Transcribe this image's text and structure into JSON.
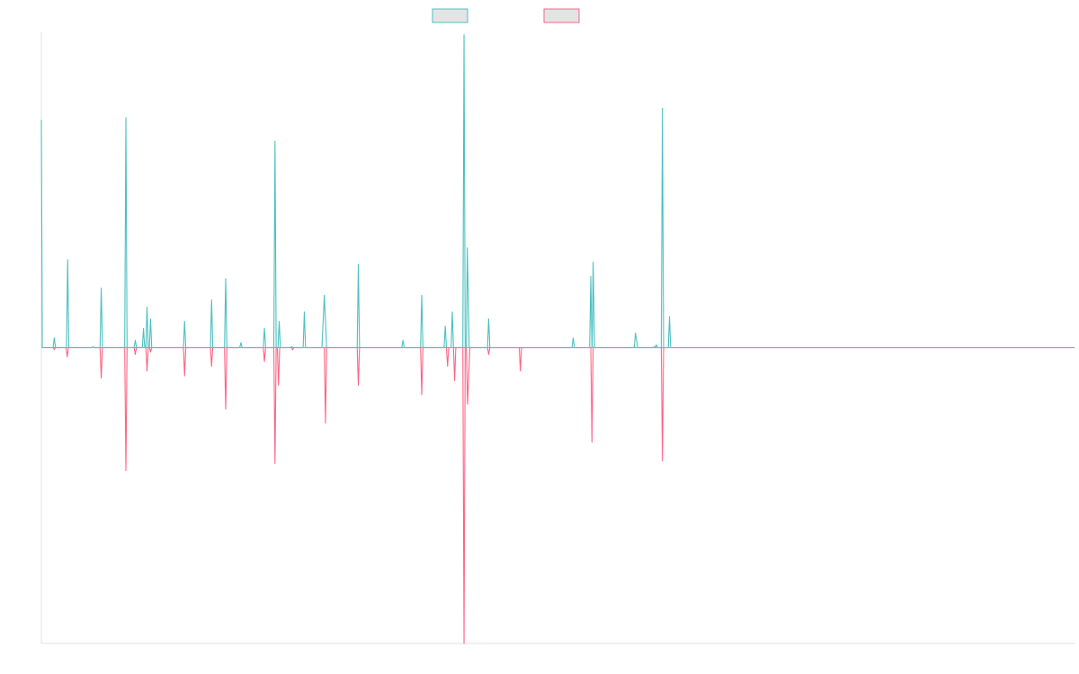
{
  "chart_data": {
    "type": "line",
    "title": "",
    "xlabel": "",
    "ylabel": "",
    "grid": false,
    "legend_placement": "top-center",
    "x_range": [
      0,
      440
    ],
    "ylim": [
      -1.25,
      1.33
    ],
    "series": [
      {
        "color": "#4bc0c0",
        "fill": "#e4e4e4",
        "points": [
          [
            0,
            0.96
          ],
          [
            0.4,
            0
          ],
          [
            5,
            0
          ],
          [
            5.5,
            0.04
          ],
          [
            6,
            0
          ],
          [
            10.7,
            0
          ],
          [
            11.2,
            0.37
          ],
          [
            11.7,
            0
          ],
          [
            21.5,
            0
          ],
          [
            22,
            0.003
          ],
          [
            22.5,
            0
          ],
          [
            25,
            0
          ],
          [
            25.5,
            0.25
          ],
          [
            26,
            0
          ],
          [
            35.5,
            0
          ],
          [
            36,
            0.97
          ],
          [
            36.5,
            0
          ],
          [
            39.5,
            0
          ],
          [
            40,
            0.03
          ],
          [
            40.5,
            0
          ],
          [
            43,
            0
          ],
          [
            43.5,
            0.08
          ],
          [
            44,
            0
          ],
          [
            44.5,
            0
          ],
          [
            45,
            0.17
          ],
          [
            45.5,
            0
          ],
          [
            46,
            0
          ],
          [
            46.5,
            0.12
          ],
          [
            47,
            0
          ],
          [
            60.5,
            0
          ],
          [
            61,
            0.11
          ],
          [
            61.5,
            0
          ],
          [
            72,
            0
          ],
          [
            72.5,
            0.2
          ],
          [
            73,
            0
          ],
          [
            78,
            0
          ],
          [
            78.5,
            0.29
          ],
          [
            79,
            0
          ],
          [
            84.5,
            0
          ],
          [
            85,
            0.02
          ],
          [
            85.5,
            0
          ],
          [
            94.5,
            0
          ],
          [
            95,
            0.08
          ],
          [
            95.5,
            0
          ],
          [
            99,
            0
          ],
          [
            99.5,
            0.87
          ],
          [
            100,
            0
          ],
          [
            100.8,
            0
          ],
          [
            101.3,
            0.11
          ],
          [
            101.8,
            0
          ],
          [
            106.2,
            0
          ],
          [
            106.7,
            0.003
          ],
          [
            107.2,
            0
          ],
          [
            111.5,
            0
          ],
          [
            112,
            0.15
          ],
          [
            112.5,
            0
          ],
          [
            119.5,
            0
          ],
          [
            120.5,
            0.22
          ],
          [
            121.5,
            0
          ],
          [
            134.5,
            0
          ],
          [
            135,
            0.35
          ],
          [
            135.5,
            0
          ],
          [
            153.5,
            0
          ],
          [
            154,
            0.03
          ],
          [
            154.5,
            0
          ],
          [
            161.5,
            0
          ],
          [
            162,
            0.22
          ],
          [
            162.5,
            0
          ],
          [
            171.5,
            0
          ],
          [
            172,
            0.09
          ],
          [
            172.5,
            0
          ],
          [
            174.5,
            0
          ],
          [
            175,
            0.15
          ],
          [
            175.5,
            0
          ],
          [
            179.5,
            0
          ],
          [
            180,
            1.32
          ],
          [
            180.5,
            0
          ],
          [
            181,
            0
          ],
          [
            181.4,
            0.42
          ],
          [
            182.2,
            0
          ],
          [
            190,
            0
          ],
          [
            190.5,
            0.12
          ],
          [
            191,
            0
          ],
          [
            203.5,
            0
          ],
          [
            204,
            0.0
          ],
          [
            204.5,
            0
          ],
          [
            226,
            0
          ],
          [
            226.5,
            0.04
          ],
          [
            227,
            0
          ],
          [
            233.5,
            0
          ],
          [
            234,
            0.3
          ],
          [
            234.5,
            0
          ],
          [
            234.6,
            0
          ],
          [
            235,
            0.36
          ],
          [
            235.6,
            0
          ],
          [
            252,
            0
          ],
          [
            252.5,
            0.003
          ],
          [
            253,
            0
          ],
          [
            252.5,
            0
          ],
          [
            253,
            0.06
          ],
          [
            254,
            0
          ],
          [
            260.5,
            0
          ],
          [
            261,
            0.003
          ],
          [
            261.5,
            0
          ],
          [
            261.4,
            0
          ],
          [
            261.9,
            0.01
          ],
          [
            262.4,
            0
          ],
          [
            264,
            0
          ],
          [
            264.5,
            1.01
          ],
          [
            265,
            0
          ],
          [
            267,
            0
          ],
          [
            267.5,
            0.13
          ],
          [
            268,
            0
          ],
          [
            440,
            0
          ]
        ]
      },
      {
        "color": "#ff6384",
        "fill": "#e4e4e4",
        "points": [
          [
            0,
            0
          ],
          [
            5,
            0
          ],
          [
            5.5,
            -0.01
          ],
          [
            6,
            0
          ],
          [
            10.5,
            0
          ],
          [
            11,
            -0.04
          ],
          [
            11.5,
            0
          ],
          [
            25,
            0
          ],
          [
            25.5,
            -0.13
          ],
          [
            26,
            0
          ],
          [
            35.5,
            0
          ],
          [
            36,
            -0.52
          ],
          [
            36.5,
            0
          ],
          [
            39.5,
            0
          ],
          [
            40,
            -0.03
          ],
          [
            40.5,
            0
          ],
          [
            44.5,
            0
          ],
          [
            45,
            -0.1
          ],
          [
            45.5,
            0
          ],
          [
            46,
            0
          ],
          [
            46.5,
            -0.02
          ],
          [
            47,
            0
          ],
          [
            60.5,
            0
          ],
          [
            61,
            -0.12
          ],
          [
            61.5,
            0
          ],
          [
            72,
            0
          ],
          [
            72.5,
            -0.08
          ],
          [
            73,
            0
          ],
          [
            78,
            0
          ],
          [
            78.5,
            -0.26
          ],
          [
            79,
            0
          ],
          [
            94.5,
            0
          ],
          [
            95,
            -0.06
          ],
          [
            95.5,
            0
          ],
          [
            99,
            0
          ],
          [
            99.5,
            -0.49
          ],
          [
            100,
            0
          ],
          [
            100.5,
            0
          ],
          [
            101,
            -0.16
          ],
          [
            101.5,
            0
          ],
          [
            106.5,
            0
          ],
          [
            107,
            -0.01
          ],
          [
            107.5,
            0
          ],
          [
            120.5,
            0
          ],
          [
            121,
            -0.32
          ],
          [
            121.5,
            0
          ],
          [
            134.5,
            0
          ],
          [
            135,
            -0.16
          ],
          [
            135.5,
            0
          ],
          [
            161.5,
            0
          ],
          [
            162,
            -0.2
          ],
          [
            162.5,
            0
          ],
          [
            172.5,
            0
          ],
          [
            173,
            -0.08
          ],
          [
            173.5,
            0
          ],
          [
            175.5,
            0
          ],
          [
            176,
            -0.14
          ],
          [
            176.5,
            0
          ],
          [
            179.5,
            0
          ],
          [
            180,
            -1.25
          ],
          [
            180.5,
            0
          ],
          [
            181,
            0
          ],
          [
            181.5,
            -0.24
          ],
          [
            182.5,
            0
          ],
          [
            190,
            0
          ],
          [
            190.5,
            -0.03
          ],
          [
            191,
            0
          ],
          [
            203.5,
            0
          ],
          [
            204,
            -0.1
          ],
          [
            204.5,
            0
          ],
          [
            234,
            0
          ],
          [
            234.5,
            -0.4
          ],
          [
            235,
            0
          ],
          [
            264,
            0
          ],
          [
            264.5,
            -0.48
          ],
          [
            265,
            0
          ],
          [
            440,
            0
          ]
        ]
      }
    ]
  }
}
